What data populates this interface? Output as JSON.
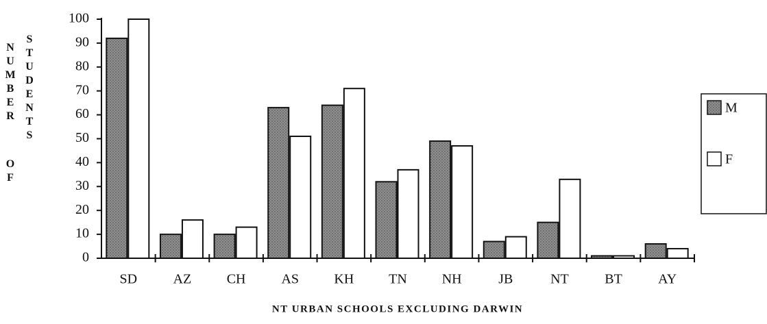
{
  "chart_data": {
    "type": "bar",
    "x_label": "NT URBAN SCHOOLS EXCLUDING DARWIN",
    "y_label": [
      "NUMBER OF",
      "STUDENTS"
    ],
    "categories": [
      "SD",
      "AZ",
      "CH",
      "AS",
      "KH",
      "TN",
      "NH",
      "JB",
      "NT",
      "BT",
      "AY"
    ],
    "series": [
      {
        "name": "M",
        "color": "#8f8f8f",
        "values": [
          92,
          10,
          10,
          63,
          64,
          32,
          49,
          7,
          15,
          1,
          6
        ]
      },
      {
        "name": "F",
        "color": "#ffffff",
        "values": [
          100,
          16,
          13,
          51,
          71,
          37,
          47,
          9,
          33,
          1,
          4
        ]
      }
    ],
    "ylim": [
      0,
      100
    ],
    "yticks": [
      0,
      10,
      20,
      30,
      40,
      50,
      60,
      70,
      80,
      90,
      100
    ],
    "legend": "right"
  }
}
